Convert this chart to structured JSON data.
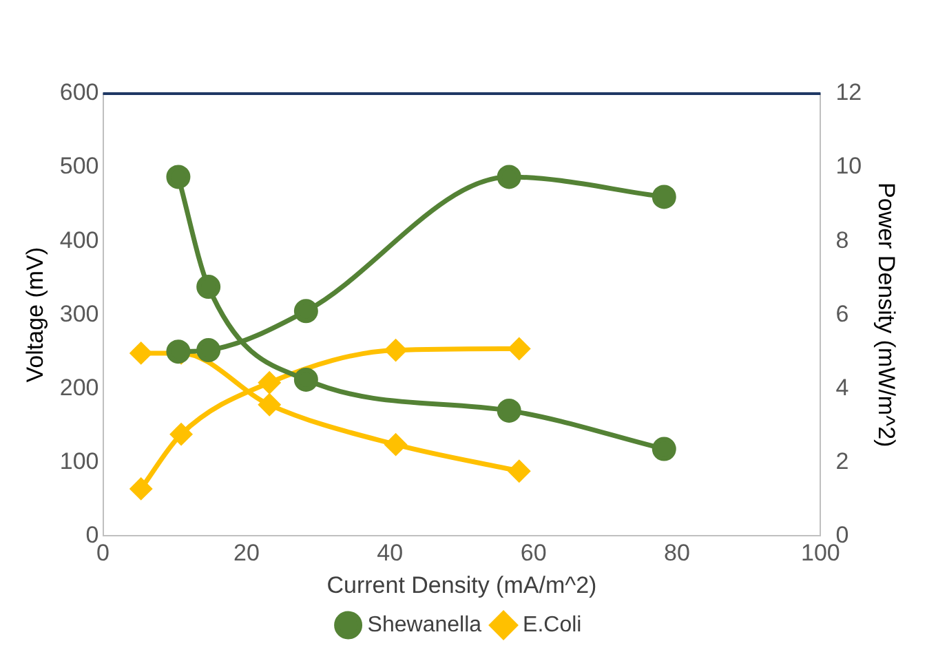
{
  "chart_data": {
    "type": "line",
    "xlabel": "Current Density (mA/m^2)",
    "ylabel": "Voltage (mV)",
    "y2label": "Power Density (mW/m^2)",
    "xlim": [
      0,
      100
    ],
    "xticks": [
      0,
      20,
      40,
      60,
      80,
      100
    ],
    "ylim": [
      0,
      600
    ],
    "yticks": [
      0,
      100,
      200,
      300,
      400,
      500,
      600
    ],
    "y2lim": [
      0,
      12
    ],
    "y2ticks": [
      0,
      2,
      4,
      6,
      8,
      10,
      12
    ],
    "grid": false,
    "legend": "bottom",
    "series": [
      {
        "name": "Shewanella",
        "color": "#548235",
        "marker": "circle",
        "x": [
          10.5,
          14.7,
          28.3,
          56.6,
          78.2
        ],
        "values": [
          487,
          338,
          212,
          170,
          118
        ]
      },
      {
        "color": "#548235",
        "marker": "circle",
        "axis": "y2",
        "x": [
          10.5,
          14.7,
          28.3,
          56.6,
          78.2
        ],
        "values": [
          5.0,
          5.04,
          6.1,
          9.74,
          9.2
        ]
      },
      {
        "name": "E.Coli",
        "color": "#ffc000",
        "marker": "diamond",
        "x": [
          5.3,
          10.9,
          23.2,
          40.8,
          58.0
        ],
        "values": [
          248,
          248,
          178,
          124,
          88
        ]
      },
      {
        "color": "#ffc000",
        "marker": "diamond",
        "axis": "y2",
        "x": [
          5.3,
          10.9,
          23.2,
          40.8,
          58.0
        ],
        "values": [
          1.28,
          2.76,
          4.16,
          5.04,
          5.08
        ]
      }
    ]
  }
}
